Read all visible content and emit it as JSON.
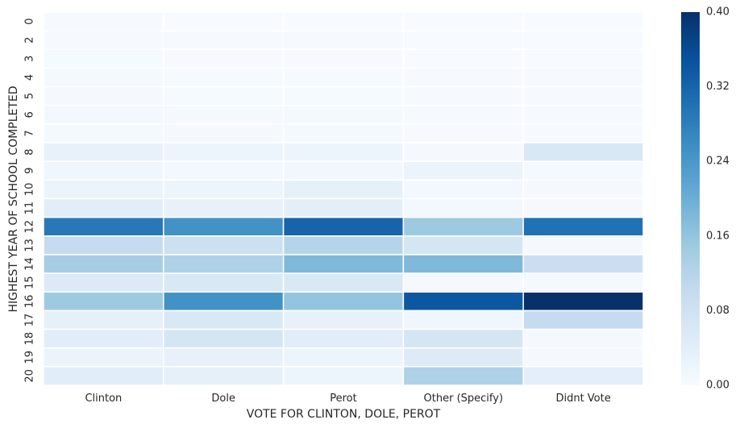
{
  "chart_data": {
    "type": "heatmap",
    "xlabel": "VOTE FOR CLINTON, DOLE, PEROT",
    "ylabel": "HIGHEST YEAR OF SCHOOL COMPLETED",
    "columns": [
      "Clinton",
      "Dole",
      "Perot",
      "Other (Specify)",
      "Didnt Vote"
    ],
    "rows": [
      "0",
      "2",
      "3",
      "4",
      "5",
      "6",
      "7",
      "8",
      "9",
      "10",
      "11",
      "12",
      "13",
      "14",
      "15",
      "16",
      "17",
      "18",
      "19",
      "20"
    ],
    "values": [
      [
        0.002,
        0.001,
        0.001,
        0.0,
        0.0
      ],
      [
        0.003,
        0.002,
        0.002,
        0.001,
        0.001
      ],
      [
        0.004,
        0.003,
        0.003,
        0.001,
        0.001
      ],
      [
        0.006,
        0.004,
        0.004,
        0.002,
        0.002
      ],
      [
        0.005,
        0.004,
        0.004,
        0.002,
        0.002
      ],
      [
        0.008,
        0.006,
        0.006,
        0.003,
        0.003
      ],
      [
        0.007,
        0.005,
        0.006,
        0.002,
        0.002
      ],
      [
        0.03,
        0.02,
        0.02,
        0.005,
        0.06
      ],
      [
        0.015,
        0.01,
        0.012,
        0.025,
        0.005
      ],
      [
        0.025,
        0.02,
        0.035,
        0.008,
        0.005
      ],
      [
        0.045,
        0.03,
        0.04,
        0.01,
        0.005
      ],
      [
        0.29,
        0.25,
        0.32,
        0.15,
        0.3
      ],
      [
        0.1,
        0.085,
        0.12,
        0.07,
        0.005
      ],
      [
        0.14,
        0.13,
        0.18,
        0.18,
        0.09
      ],
      [
        0.055,
        0.06,
        0.06,
        0.005,
        0.005
      ],
      [
        0.15,
        0.25,
        0.16,
        0.34,
        0.4
      ],
      [
        0.035,
        0.06,
        0.03,
        0.015,
        0.1
      ],
      [
        0.045,
        0.07,
        0.045,
        0.07,
        0.005
      ],
      [
        0.025,
        0.03,
        0.02,
        0.05,
        0.005
      ],
      [
        0.045,
        0.035,
        0.02,
        0.13,
        0.04
      ]
    ],
    "colorbar": {
      "min": 0.0,
      "max": 0.4,
      "ticks": [
        "0.00",
        "0.08",
        "0.16",
        "0.24",
        "0.32",
        "0.40"
      ],
      "colormap": "Blues"
    },
    "cell_border_color": "#ffffff"
  }
}
